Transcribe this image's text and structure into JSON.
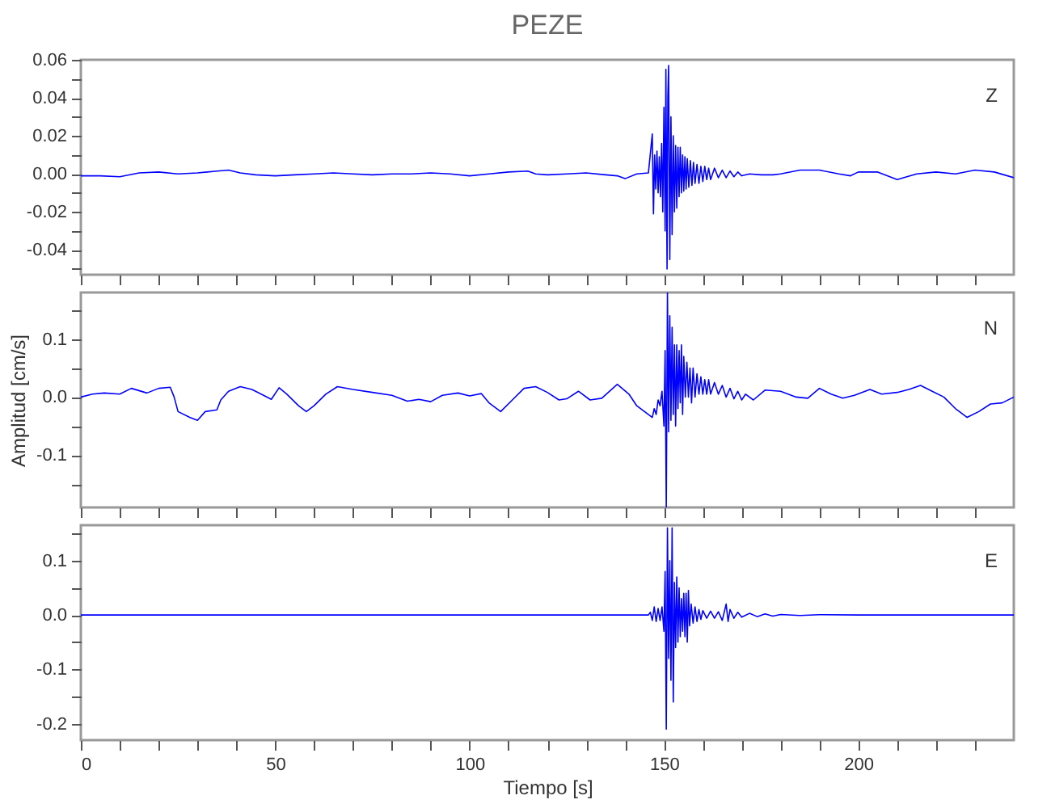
{
  "chart_data": [
    {
      "type": "line",
      "title": "PEZE",
      "xlim": [
        0,
        240
      ],
      "ylim": [
        -0.053,
        0.06
      ],
      "tick_labels": "y",
      "xticks": [
        0,
        {
          "value": 10,
          "label": null
        },
        {
          "value": 20,
          "label": null
        },
        {
          "value": 30,
          "label": null
        },
        {
          "value": 40,
          "label": null
        },
        50,
        {
          "value": 60,
          "label": null
        },
        {
          "value": 70,
          "label": null
        },
        {
          "value": 80,
          "label": null
        },
        {
          "value": 90,
          "label": null
        },
        100,
        {
          "value": 110,
          "label": null
        },
        {
          "value": 120,
          "label": null
        },
        {
          "value": 130,
          "label": null
        },
        {
          "value": 140,
          "label": null
        },
        150,
        {
          "value": 160,
          "label": null
        },
        {
          "value": 170,
          "label": null
        },
        {
          "value": 180,
          "label": null
        },
        {
          "value": 190,
          "label": null
        },
        200,
        {
          "value": 210,
          "label": null
        },
        {
          "value": 220,
          "label": null
        },
        {
          "value": 230,
          "label": null
        }
      ],
      "yticks": [
        {
          "value": -0.05,
          "label": null
        },
        {
          "value": -0.04,
          "label": "-0.04"
        },
        {
          "value": -0.03,
          "label": null
        },
        {
          "value": -0.02,
          "label": "-0.02"
        },
        {
          "value": -0.01,
          "label": null
        },
        {
          "value": 0,
          "label": "0.00"
        },
        {
          "value": 0.01,
          "label": null
        },
        {
          "value": 0.02,
          "label": "0.02"
        },
        {
          "value": 0.03,
          "label": null
        },
        {
          "value": 0.04,
          "label": "0.04"
        },
        {
          "value": 0.05,
          "label": null
        },
        {
          "value": 0.06,
          "label": "0.06"
        }
      ],
      "series": [
        {
          "name": "Z",
          "color": "#0000ff",
          "x": [
            0,
            5,
            10,
            15,
            20,
            25,
            30,
            35,
            38,
            41,
            45,
            50,
            55,
            60,
            65,
            70,
            75,
            80,
            85,
            90,
            95,
            100,
            105,
            110,
            115,
            117,
            120,
            125,
            130,
            135,
            138,
            140,
            143,
            146,
            147,
            147.3,
            147.6,
            147.9,
            148.2,
            148.5,
            148.8,
            149.1,
            149.4,
            149.7,
            150,
            150.3,
            150.5,
            150.8,
            151,
            151.2,
            151.5,
            151.8,
            152.1,
            152.4,
            152.7,
            153,
            153.3,
            153.6,
            153.9,
            154.2,
            154.5,
            154.8,
            155.1,
            155.4,
            155.7,
            156,
            156.4,
            156.8,
            157.2,
            157.6,
            158,
            158.5,
            159,
            159.5,
            160,
            160.5,
            161,
            161.5,
            162,
            163,
            164,
            165,
            166,
            167,
            168,
            169,
            170,
            172,
            175,
            178,
            180,
            185,
            190,
            195,
            198,
            200,
            205,
            210,
            215,
            220,
            225,
            230,
            235,
            240
          ],
          "values": [
            -0.001,
            -0.001,
            -0.0015,
            0.0005,
            0.001,
            0,
            0.0005,
            0.0015,
            0.002,
            0.0005,
            -0.0005,
            -0.001,
            -0.0005,
            0,
            0.0005,
            0,
            -0.0005,
            0,
            0,
            0.0005,
            0,
            -0.001,
            0,
            0.001,
            0.0015,
            0,
            -0.0005,
            0,
            0.0005,
            -0.0005,
            -0.001,
            -0.0025,
            0,
            0.0005,
            0.021,
            -0.021,
            0.01,
            -0.008,
            0.012,
            -0.01,
            0.009,
            -0.012,
            0.016,
            -0.02,
            0.035,
            -0.03,
            0.055,
            -0.05,
            0.04,
            0.057,
            -0.045,
            0.03,
            -0.032,
            0.02,
            -0.02,
            0.015,
            -0.018,
            0.014,
            -0.012,
            0.014,
            -0.01,
            0.01,
            -0.009,
            0.009,
            -0.008,
            0.008,
            -0.007,
            0.007,
            -0.006,
            0.006,
            -0.005,
            0.005,
            -0.005,
            0.004,
            -0.004,
            0.004,
            -0.003,
            0.003,
            -0.003,
            0.003,
            -0.002,
            0.002,
            -0.002,
            0.0015,
            -0.0015,
            0.001,
            -0.001,
            0,
            -0.0005,
            -0.0005,
            0,
            0.002,
            0.002,
            0,
            -0.001,
            0.001,
            0.001,
            -0.003,
            0,
            0.001,
            0,
            0.002,
            0.001,
            -0.002
          ]
        }
      ]
    },
    {
      "type": "line",
      "ylabel": "Amplitud [cm/s]",
      "xlim": [
        0,
        240
      ],
      "ylim": [
        -0.19,
        0.18
      ],
      "tick_labels": "y",
      "xticks": [
        0,
        {
          "value": 10,
          "label": null
        },
        {
          "value": 20,
          "label": null
        },
        {
          "value": 30,
          "label": null
        },
        {
          "value": 40,
          "label": null
        },
        50,
        {
          "value": 60,
          "label": null
        },
        {
          "value": 70,
          "label": null
        },
        {
          "value": 80,
          "label": null
        },
        {
          "value": 90,
          "label": null
        },
        100,
        {
          "value": 110,
          "label": null
        },
        {
          "value": 120,
          "label": null
        },
        {
          "value": 130,
          "label": null
        },
        {
          "value": 140,
          "label": null
        },
        150,
        {
          "value": 160,
          "label": null
        },
        {
          "value": 170,
          "label": null
        },
        {
          "value": 180,
          "label": null
        },
        {
          "value": 190,
          "label": null
        },
        200,
        {
          "value": 210,
          "label": null
        },
        {
          "value": 220,
          "label": null
        },
        {
          "value": 230,
          "label": null
        }
      ],
      "yticks": [
        {
          "value": -0.15,
          "label": null
        },
        {
          "value": -0.1,
          "label": "-0.1"
        },
        {
          "value": -0.05,
          "label": null
        },
        {
          "value": 0,
          "label": "0.0"
        },
        {
          "value": 0.05,
          "label": null
        },
        {
          "value": 0.1,
          "label": "0.1"
        },
        {
          "value": 0.15,
          "label": null
        }
      ],
      "series": [
        {
          "name": "N",
          "color": "#0000ff",
          "x": [
            0,
            3,
            6,
            10,
            13,
            17,
            20,
            23,
            24,
            25,
            28,
            30,
            32,
            35,
            36,
            38,
            41,
            44,
            47,
            49,
            51,
            53,
            56,
            58,
            60,
            63,
            66,
            70,
            75,
            80,
            84,
            87,
            90,
            93,
            97,
            100,
            103,
            105,
            108,
            111,
            114,
            117,
            120,
            123,
            125,
            128,
            131,
            134,
            138,
            141,
            143,
            145,
            147,
            147.5,
            148,
            148.5,
            149,
            149.5,
            150,
            150.3,
            150.6,
            150.9,
            151.2,
            151.5,
            151.8,
            152.1,
            152.4,
            152.7,
            153,
            153.3,
            153.6,
            153.9,
            154.2,
            154.5,
            154.8,
            155.1,
            155.5,
            155.9,
            156.3,
            156.7,
            157.1,
            157.5,
            158,
            158.5,
            159,
            159.5,
            160,
            160.5,
            161,
            161.5,
            162,
            163,
            164,
            165,
            166,
            167,
            168,
            169,
            170,
            171,
            173,
            176,
            180,
            184,
            187,
            190,
            193,
            196,
            199,
            203,
            206,
            210,
            213,
            216,
            219,
            222,
            225,
            228,
            231,
            234,
            237,
            240
          ],
          "values": [
            0,
            0.005,
            0.007,
            0.005,
            0.015,
            0.007,
            0.015,
            0.017,
            0,
            -0.025,
            -0.035,
            -0.04,
            -0.025,
            -0.022,
            -0.005,
            0.01,
            0.018,
            0.013,
            0.003,
            -0.004,
            0.016,
            0.005,
            -0.015,
            -0.025,
            -0.015,
            0.005,
            0.018,
            0.013,
            0.008,
            0.003,
            -0.007,
            -0.004,
            -0.008,
            0.003,
            0.007,
            0.002,
            0.006,
            -0.01,
            -0.025,
            -0.005,
            0.015,
            0.018,
            0.008,
            -0.005,
            -0.003,
            0.01,
            -0.005,
            -0.002,
            0.022,
            0.005,
            -0.015,
            -0.025,
            -0.035,
            -0.02,
            -0.03,
            -0.005,
            -0.015,
            0.01,
            -0.05,
            0.08,
            -0.19,
            0.18,
            -0.06,
            0.14,
            -0.04,
            0.12,
            -0.03,
            0.09,
            -0.05,
            0.09,
            -0.02,
            0.08,
            -0.01,
            0.09,
            -0.03,
            0.07,
            0,
            0.06,
            0,
            0.05,
            -0.01,
            0.05,
            0,
            0.04,
            0.005,
            0.035,
            0.005,
            0.03,
            0.005,
            0.03,
            0.005,
            0.025,
            0.005,
            0.02,
            0,
            0.015,
            -0.003,
            0.01,
            -0.005,
            0.005,
            -0.005,
            0.012,
            0.01,
            0,
            -0.002,
            0.015,
            0.005,
            -0.002,
            0.003,
            0.013,
            0.005,
            0.008,
            0.013,
            0.02,
            0.01,
            0,
            -0.02,
            -0.035,
            -0.025,
            -0.012,
            -0.01,
            0
          ]
        }
      ]
    },
    {
      "type": "line",
      "xlabel": "Tiempo [s]",
      "xlim": [
        0,
        240
      ],
      "ylim": [
        -0.23,
        0.165
      ],
      "xticks": [
        0,
        {
          "value": 10,
          "label": null
        },
        {
          "value": 20,
          "label": null
        },
        {
          "value": 30,
          "label": null
        },
        {
          "value": 40,
          "label": null
        },
        50,
        {
          "value": 60,
          "label": null
        },
        {
          "value": 70,
          "label": null
        },
        {
          "value": 80,
          "label": null
        },
        {
          "value": 90,
          "label": null
        },
        100,
        {
          "value": 110,
          "label": null
        },
        {
          "value": 120,
          "label": null
        },
        {
          "value": 130,
          "label": null
        },
        {
          "value": 140,
          "label": null
        },
        150,
        {
          "value": 160,
          "label": null
        },
        {
          "value": 170,
          "label": null
        },
        {
          "value": 180,
          "label": null
        },
        {
          "value": 190,
          "label": null
        },
        200,
        {
          "value": 210,
          "label": null
        },
        {
          "value": 220,
          "label": null
        },
        {
          "value": 230,
          "label": null
        }
      ],
      "yticks": [
        {
          "value": -0.2,
          "label": "-0.2"
        },
        {
          "value": -0.15,
          "label": null
        },
        {
          "value": -0.1,
          "label": "-0.1"
        },
        {
          "value": -0.05,
          "label": null
        },
        {
          "value": 0,
          "label": "0.0"
        },
        {
          "value": 0.05,
          "label": null
        },
        {
          "value": 0.1,
          "label": "0.1"
        },
        {
          "value": 0.15,
          "label": null
        }
      ],
      "series": [
        {
          "name": "E",
          "color": "#0000ff",
          "x": [
            0,
            50,
            100,
            146,
            146.5,
            147,
            147.5,
            148,
            148.5,
            149,
            149.5,
            150,
            150.3,
            150.6,
            150.9,
            151.2,
            151.5,
            151.8,
            152.1,
            152.4,
            152.7,
            153,
            153.3,
            153.6,
            153.9,
            154.2,
            154.5,
            154.8,
            155.1,
            155.4,
            155.7,
            156,
            156.3,
            156.6,
            157,
            157.5,
            158,
            158.5,
            159,
            159.5,
            160,
            161,
            162,
            163,
            164,
            165,
            166,
            166.5,
            167,
            168,
            169,
            170,
            172,
            174,
            176,
            178,
            180,
            185,
            190,
            200,
            240
          ],
          "values": [
            0,
            0,
            0,
            0,
            0.005,
            -0.01,
            0.015,
            -0.012,
            0.012,
            -0.01,
            0.015,
            -0.03,
            0.08,
            -0.21,
            0.16,
            -0.08,
            0.1,
            -0.12,
            0.16,
            -0.16,
            0.06,
            -0.06,
            0.07,
            -0.05,
            0.05,
            -0.04,
            0.03,
            -0.03,
            0.04,
            -0.04,
            0.04,
            -0.05,
            0.045,
            -0.02,
            0.02,
            -0.015,
            0.015,
            -0.012,
            0.01,
            -0.008,
            0.008,
            -0.006,
            0.007,
            -0.006,
            0.006,
            -0.01,
            0.02,
            -0.012,
            0.01,
            -0.006,
            0.005,
            -0.004,
            0.003,
            -0.003,
            0.002,
            -0.002,
            0.001,
            -0.001,
            0.0005,
            0,
            0
          ]
        }
      ]
    }
  ]
}
